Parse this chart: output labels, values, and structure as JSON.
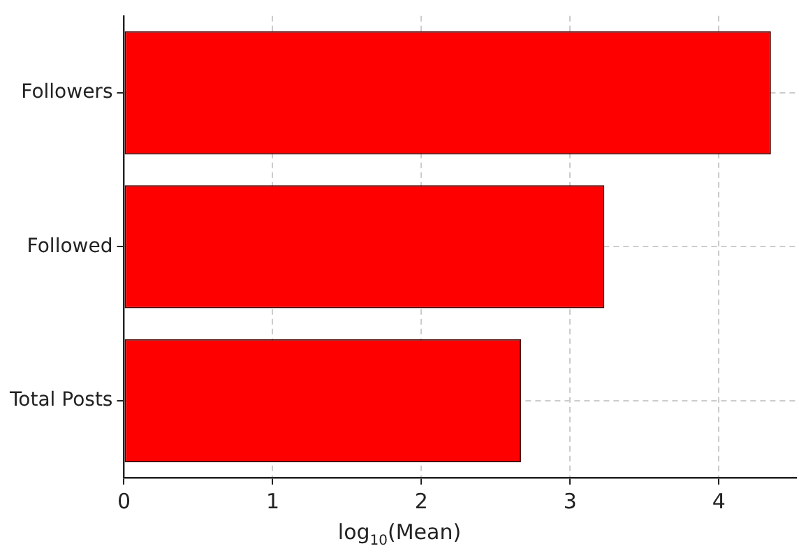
{
  "chart_data": {
    "type": "bar",
    "orientation": "horizontal",
    "xlabel": "log$_{10}$(Mean)",
    "categories": [
      "Followers",
      "Followed",
      "Total Posts"
    ],
    "values": [
      4.35,
      3.23,
      2.67
    ],
    "color": "#ff0000",
    "xlim": [
      0,
      4.52
    ],
    "xticks": [
      0,
      1,
      2,
      3,
      4
    ],
    "grid": true
  }
}
